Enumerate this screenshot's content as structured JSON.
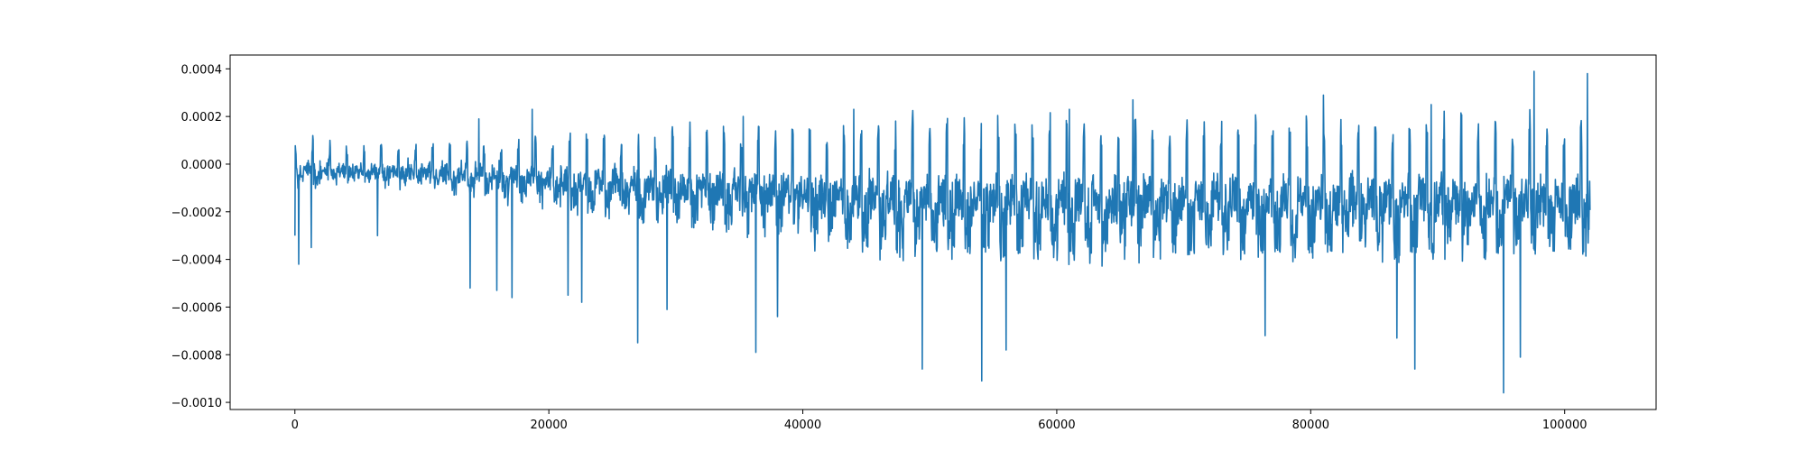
{
  "chart_data": {
    "type": "line",
    "title": "",
    "xlabel": "",
    "ylabel": "",
    "xlim": [
      -5100,
      107200
    ],
    "ylim": [
      -0.00103,
      0.000458
    ],
    "grid": false,
    "legend": "none",
    "x_ticks": [
      0,
      20000,
      40000,
      60000,
      80000,
      100000
    ],
    "x_tick_labels": [
      "0",
      "20000",
      "40000",
      "60000",
      "80000",
      "100000"
    ],
    "y_ticks": [
      0.0004,
      0.0002,
      0.0,
      -0.0002,
      -0.0004,
      -0.0006,
      -0.0008,
      -0.001
    ],
    "y_tick_labels": [
      "0.0004",
      "0.0002",
      "0.0000",
      "−0.0002",
      "−0.0004",
      "−0.0006",
      "−0.0008",
      "−0.0010"
    ],
    "series": [
      {
        "color": "#1f77b4",
        "x_range": [
          0,
          102000
        ],
        "baseline": 2e-05,
        "spike_events": [
          {
            "x": 0,
            "y": -0.0003
          },
          {
            "x": 300,
            "y": -0.00042
          },
          {
            "x": 1300,
            "y": -0.00035
          },
          {
            "x": 1400,
            "y": 0.00012
          },
          {
            "x": 6500,
            "y": -0.0003
          },
          {
            "x": 13800,
            "y": -0.00052
          },
          {
            "x": 14500,
            "y": 0.00019
          },
          {
            "x": 15900,
            "y": -0.00053
          },
          {
            "x": 17100,
            "y": -0.00056
          },
          {
            "x": 18700,
            "y": 0.00023
          },
          {
            "x": 21500,
            "y": -0.00055
          },
          {
            "x": 22600,
            "y": -0.00058
          },
          {
            "x": 27000,
            "y": -0.00075
          },
          {
            "x": 29300,
            "y": -0.00061
          },
          {
            "x": 35300,
            "y": 0.0002
          },
          {
            "x": 36300,
            "y": -0.00079
          },
          {
            "x": 38000,
            "y": -0.00064
          },
          {
            "x": 44000,
            "y": 0.00023
          },
          {
            "x": 49400,
            "y": -0.00086
          },
          {
            "x": 54100,
            "y": -0.00091
          },
          {
            "x": 56000,
            "y": -0.00078
          },
          {
            "x": 61000,
            "y": 0.00023
          },
          {
            "x": 66000,
            "y": 0.00027
          },
          {
            "x": 76400,
            "y": -0.00072
          },
          {
            "x": 81000,
            "y": 0.00029
          },
          {
            "x": 86800,
            "y": -0.00073
          },
          {
            "x": 88200,
            "y": -0.00086
          },
          {
            "x": 89500,
            "y": 0.00025
          },
          {
            "x": 95200,
            "y": -0.00096
          },
          {
            "x": 96500,
            "y": -0.00081
          },
          {
            "x": 97600,
            "y": 0.00039
          },
          {
            "x": 101800,
            "y": 0.00038
          }
        ]
      }
    ]
  }
}
